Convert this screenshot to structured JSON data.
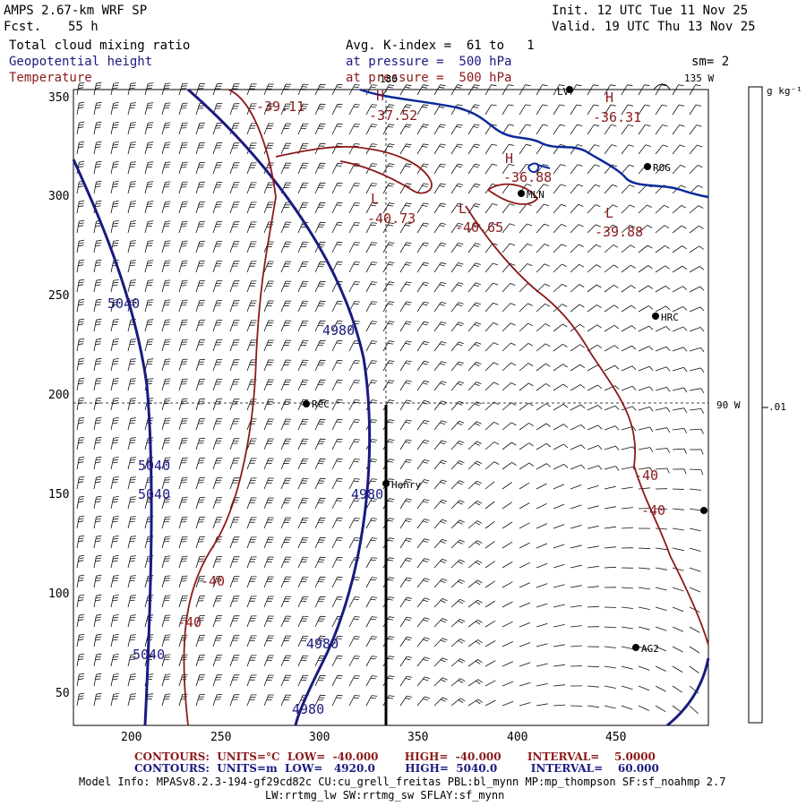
{
  "header": {
    "model": "AMPS 2.67-km WRF SP",
    "fcst_label": "Fcst.",
    "fcst_value": "55 h",
    "init": "Init. 12 UTC Tue 11 Nov 25",
    "valid": "Valid. 19 UTC Thu 13 Nov 25",
    "field1": "Total cloud mixing ratio",
    "field2": "Geopotential height",
    "field3": "Temperature",
    "avg": "Avg. K-index =  61 to   1",
    "pressure1": "at pressure =  500 hPa",
    "pressure2": "at pressure =  500 hPa",
    "sm": "sm= 2"
  },
  "map": {
    "meridian_top": "180",
    "meridian_135": "135 W",
    "meridian_90": "90 W",
    "x_ticks": [
      "200",
      "250",
      "300",
      "350",
      "400",
      "450"
    ],
    "y_ticks": [
      "350",
      "300",
      "250",
      "200",
      "150",
      "100",
      "50"
    ],
    "stations": [
      "RCC",
      "Henry",
      "MLN",
      "ROG",
      "HRC",
      "AG2",
      "LV"
    ],
    "height_labels": [
      "5040",
      "5040",
      "5040",
      "5040",
      "4980",
      "4980",
      "4980",
      "4980"
    ],
    "temp_labels": [
      "-39.11",
      "-37.52",
      "-36.31",
      "-36.88",
      "-40.73",
      "-40.65",
      "-39.88",
      "-40",
      "-40",
      "-40",
      "-40"
    ],
    "extrema": [
      "H",
      "H",
      "H",
      "L",
      "L",
      "L"
    ]
  },
  "colorbar": {
    "unit": "g kg⁻¹",
    "tick": ".01"
  },
  "footer": {
    "line1": "CONTOURS:  UNITS=°C  LOW=  -40.000       HIGH=  -40.000       INTERVAL=    5.0000",
    "line2": "CONTOURS:  UNITS=m  LOW=   4920.0        HIGH=  5040.0         INTERVAL=    60.000",
    "model_info": "Model Info: MPASv8.2.3-194-gf29cd82c CU:cu_grell_freitas PBL:bl_mynn MP:mp_thompson SF:sf_noahmp 2.7",
    "model_info2": "LW:rrtmg_lw SW:rrtmg_sw SFLAY:sf_mynn"
  },
  "colors": {
    "height": "#1a1a80",
    "temperature": "#8b1a1a",
    "coast": "#0a2a9a"
  }
}
